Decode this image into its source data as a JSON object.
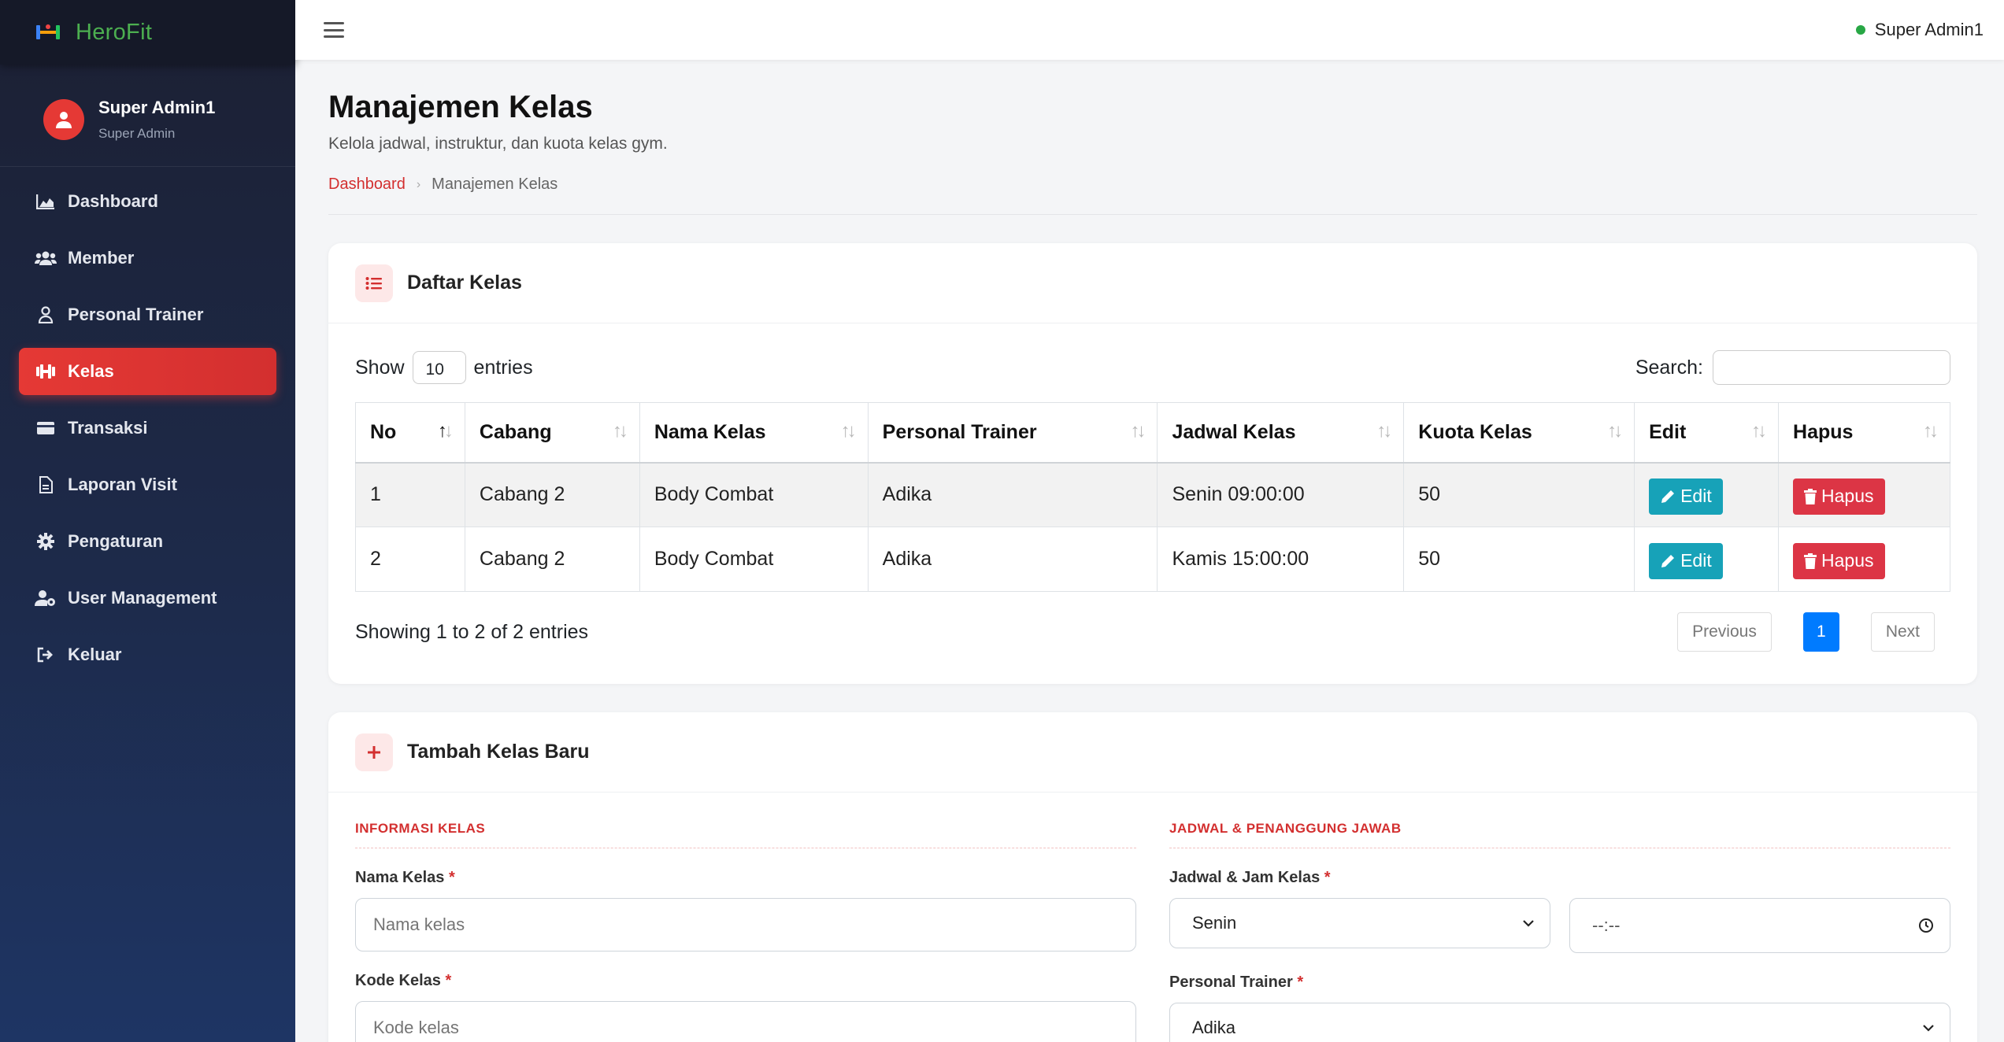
{
  "brand": {
    "name": "HeroFit"
  },
  "sidebar": {
    "user": {
      "name": "Super Admin1",
      "role": "Super Admin"
    },
    "items": [
      {
        "label": "Dashboard",
        "icon": "chart-area-icon"
      },
      {
        "label": "Member",
        "icon": "users-icon"
      },
      {
        "label": "Personal Trainer",
        "icon": "user-icon"
      },
      {
        "label": "Kelas",
        "icon": "dumbbell-icon",
        "active": true
      },
      {
        "label": "Transaksi",
        "icon": "card-icon"
      },
      {
        "label": "Laporan Visit",
        "icon": "file-icon"
      },
      {
        "label": "Pengaturan",
        "icon": "gear-icon"
      },
      {
        "label": "User Management",
        "icon": "user-gear-icon"
      },
      {
        "label": "Keluar",
        "icon": "logout-icon"
      }
    ]
  },
  "topbar": {
    "user": "Super Admin1",
    "status_color": "#28a745"
  },
  "page": {
    "title": "Manajemen Kelas",
    "subtitle": "Kelola jadwal, instruktur, dan kuota kelas gym.",
    "breadcrumb": {
      "home": "Dashboard",
      "current": "Manajemen Kelas"
    }
  },
  "list_card": {
    "title": "Daftar Kelas",
    "show_label": "Show",
    "entries_value": "10",
    "entries_label": "entries",
    "search_label": "Search:",
    "columns": [
      "No",
      "Cabang",
      "Nama Kelas",
      "Personal Trainer",
      "Jadwal Kelas",
      "Kuota Kelas",
      "Edit",
      "Hapus"
    ],
    "rows": [
      {
        "no": "1",
        "cabang": "Cabang 2",
        "nama": "Body Combat",
        "trainer": "Adika",
        "jadwal": "Senin 09:00:00",
        "kuota": "50",
        "edit": "Edit",
        "hapus": "Hapus"
      },
      {
        "no": "2",
        "cabang": "Cabang 2",
        "nama": "Body Combat",
        "trainer": "Adika",
        "jadwal": "Kamis 15:00:00",
        "kuota": "50",
        "edit": "Edit",
        "hapus": "Hapus"
      }
    ],
    "info": "Showing 1 to 2 of 2 entries",
    "pager": {
      "prev": "Previous",
      "page": "1",
      "next": "Next"
    }
  },
  "form_card": {
    "title": "Tambah Kelas Baru",
    "left_section": "INFORMASI KELAS",
    "right_section": "JADWAL & PENANGGUNG JAWAB",
    "nama_label": "Nama Kelas",
    "nama_placeholder": "Nama kelas",
    "kode_label": "Kode Kelas",
    "kode_placeholder": "Kode kelas",
    "jadwal_label": "Jadwal & Jam Kelas",
    "hari_value": "Senin",
    "jam_value": "--:--",
    "trainer_label": "Personal Trainer",
    "trainer_value": "Adika",
    "required_mark": "*"
  },
  "colors": {
    "accent": "#d32f2f",
    "edit": "#17a2b8",
    "delete": "#dc3545",
    "page_active": "#007bff"
  }
}
